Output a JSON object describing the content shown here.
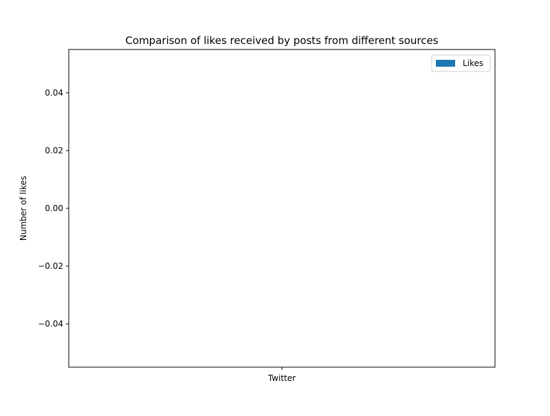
{
  "chart_data": {
    "type": "bar",
    "title": "Comparison of likes received by posts from different sources",
    "xlabel": "",
    "ylabel": "Number of likes",
    "categories": [
      "Twitter"
    ],
    "series": [
      {
        "name": "Likes",
        "values": [
          0
        ],
        "color": "#1f77b4"
      }
    ],
    "ylim": [
      -0.055,
      0.055
    ],
    "yticks": [
      -0.04,
      -0.02,
      0.0,
      0.02,
      0.04
    ],
    "ytick_labels": [
      "−0.04",
      "−0.02",
      "0.00",
      "0.02",
      "0.04"
    ],
    "grid": false,
    "legend_position": "top-right"
  }
}
